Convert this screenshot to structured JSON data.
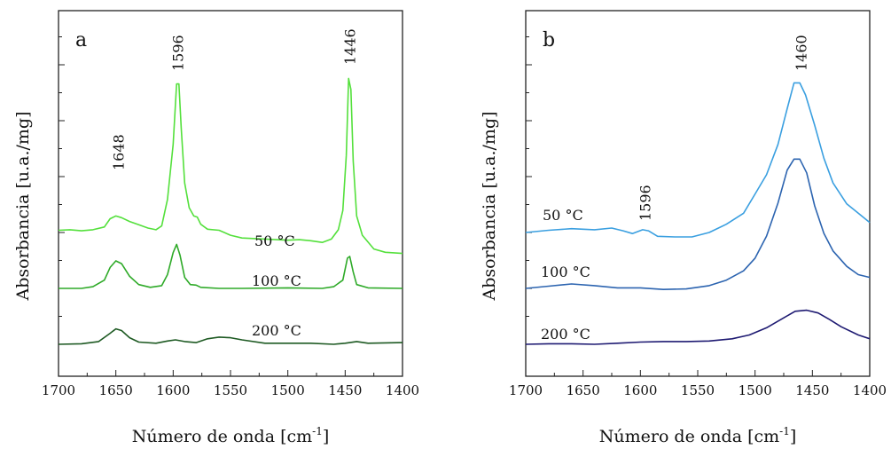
{
  "chart_data": [
    {
      "type": "line",
      "panel": "a",
      "xlabel": "Número de onda [cm",
      "xlabel_sup": "-1",
      "xlabel_end": "]",
      "ylabel": "Absorbancia [u.a./mg]",
      "xlim": [
        1700,
        1400
      ],
      "x_reversed": true,
      "xticks": [
        1700,
        1650,
        1600,
        1550,
        1500,
        1450,
        1400
      ],
      "peak_labels": [
        {
          "x": 1648,
          "text": "1648"
        },
        {
          "x": 1596,
          "text": "1596"
        },
        {
          "x": 1446,
          "text": "1446"
        }
      ],
      "series": [
        {
          "name": "50 °C",
          "color": "#54e03c",
          "points": [
            [
              1700,
              0.04
            ],
            [
              1690,
              0.05
            ],
            [
              1680,
              0.03
            ],
            [
              1670,
              0.05
            ],
            [
              1660,
              0.1
            ],
            [
              1655,
              0.25
            ],
            [
              1650,
              0.3
            ],
            [
              1645,
              0.27
            ],
            [
              1638,
              0.2
            ],
            [
              1630,
              0.14
            ],
            [
              1622,
              0.08
            ],
            [
              1615,
              0.05
            ],
            [
              1610,
              0.12
            ],
            [
              1605,
              0.6
            ],
            [
              1600,
              1.6
            ],
            [
              1597,
              2.7
            ],
            [
              1595,
              2.7
            ],
            [
              1593,
              1.9
            ],
            [
              1590,
              0.9
            ],
            [
              1586,
              0.45
            ],
            [
              1582,
              0.3
            ],
            [
              1579,
              0.28
            ],
            [
              1576,
              0.15
            ],
            [
              1570,
              0.06
            ],
            [
              1560,
              0.04
            ],
            [
              1550,
              -0.05
            ],
            [
              1540,
              -0.1
            ],
            [
              1520,
              -0.12
            ],
            [
              1500,
              -0.14
            ],
            [
              1490,
              -0.13
            ],
            [
              1480,
              -0.15
            ],
            [
              1470,
              -0.18
            ],
            [
              1462,
              -0.12
            ],
            [
              1456,
              0.05
            ],
            [
              1452,
              0.4
            ],
            [
              1449,
              1.4
            ],
            [
              1447,
              2.8
            ],
            [
              1445,
              2.6
            ],
            [
              1443,
              1.3
            ],
            [
              1440,
              0.3
            ],
            [
              1435,
              -0.05
            ],
            [
              1425,
              -0.3
            ],
            [
              1415,
              -0.36
            ],
            [
              1400,
              -0.38
            ]
          ]
        },
        {
          "name": "100 °C",
          "color": "#2eaa28",
          "points": [
            [
              1700,
              0.0
            ],
            [
              1680,
              0.0
            ],
            [
              1670,
              0.03
            ],
            [
              1660,
              0.15
            ],
            [
              1655,
              0.38
            ],
            [
              1650,
              0.5
            ],
            [
              1645,
              0.45
            ],
            [
              1638,
              0.22
            ],
            [
              1630,
              0.07
            ],
            [
              1620,
              0.02
            ],
            [
              1610,
              0.05
            ],
            [
              1605,
              0.25
            ],
            [
              1600,
              0.65
            ],
            [
              1597,
              0.8
            ],
            [
              1594,
              0.6
            ],
            [
              1590,
              0.2
            ],
            [
              1585,
              0.07
            ],
            [
              1580,
              0.06
            ],
            [
              1576,
              0.02
            ],
            [
              1560,
              0.0
            ],
            [
              1540,
              0.0
            ],
            [
              1500,
              0.01
            ],
            [
              1470,
              0.0
            ],
            [
              1460,
              0.03
            ],
            [
              1452,
              0.15
            ],
            [
              1448,
              0.55
            ],
            [
              1446,
              0.58
            ],
            [
              1443,
              0.3
            ],
            [
              1440,
              0.07
            ],
            [
              1430,
              0.01
            ],
            [
              1400,
              0.0
            ]
          ]
        },
        {
          "name": "200 °C",
          "color": "#1e5a23",
          "points": [
            [
              1700,
              0.0
            ],
            [
              1680,
              0.01
            ],
            [
              1665,
              0.05
            ],
            [
              1655,
              0.2
            ],
            [
              1650,
              0.28
            ],
            [
              1645,
              0.25
            ],
            [
              1638,
              0.12
            ],
            [
              1630,
              0.04
            ],
            [
              1615,
              0.02
            ],
            [
              1605,
              0.06
            ],
            [
              1598,
              0.08
            ],
            [
              1590,
              0.05
            ],
            [
              1580,
              0.03
            ],
            [
              1570,
              0.1
            ],
            [
              1560,
              0.13
            ],
            [
              1550,
              0.12
            ],
            [
              1540,
              0.08
            ],
            [
              1520,
              0.02
            ],
            [
              1500,
              0.02
            ],
            [
              1480,
              0.02
            ],
            [
              1460,
              0.0
            ],
            [
              1450,
              0.02
            ],
            [
              1440,
              0.05
            ],
            [
              1430,
              0.02
            ],
            [
              1400,
              0.03
            ]
          ]
        }
      ]
    },
    {
      "type": "line",
      "panel": "b",
      "xlabel": "Número de onda [cm",
      "xlabel_sup": "-1",
      "xlabel_end": "]",
      "ylabel": "Absorbancia [u.a./mg]",
      "xlim": [
        1700,
        1400
      ],
      "x_reversed": true,
      "xticks": [
        1700,
        1650,
        1600,
        1550,
        1500,
        1450,
        1400
      ],
      "peak_labels": [
        {
          "x": 1596,
          "text": "1596"
        },
        {
          "x": 1460,
          "text": "1460"
        }
      ],
      "series": [
        {
          "name": "50 °C",
          "color": "#3a9fe0",
          "points": [
            [
              1700,
              0.0
            ],
            [
              1680,
              0.04
            ],
            [
              1660,
              0.07
            ],
            [
              1640,
              0.05
            ],
            [
              1625,
              0.08
            ],
            [
              1615,
              0.03
            ],
            [
              1607,
              -0.02
            ],
            [
              1598,
              0.05
            ],
            [
              1593,
              0.03
            ],
            [
              1585,
              -0.07
            ],
            [
              1570,
              -0.08
            ],
            [
              1555,
              -0.08
            ],
            [
              1540,
              0.0
            ],
            [
              1525,
              0.15
            ],
            [
              1510,
              0.35
            ],
            [
              1500,
              0.7
            ],
            [
              1490,
              1.05
            ],
            [
              1480,
              1.6
            ],
            [
              1472,
              2.25
            ],
            [
              1466,
              2.72
            ],
            [
              1461,
              2.72
            ],
            [
              1456,
              2.5
            ],
            [
              1448,
              1.95
            ],
            [
              1440,
              1.35
            ],
            [
              1432,
              0.9
            ],
            [
              1420,
              0.52
            ],
            [
              1410,
              0.35
            ],
            [
              1400,
              0.18
            ]
          ]
        },
        {
          "name": "100 °C",
          "color": "#2c64b0",
          "points": [
            [
              1700,
              0.0
            ],
            [
              1680,
              0.04
            ],
            [
              1660,
              0.08
            ],
            [
              1640,
              0.05
            ],
            [
              1620,
              0.01
            ],
            [
              1600,
              0.01
            ],
            [
              1580,
              -0.02
            ],
            [
              1560,
              -0.01
            ],
            [
              1540,
              0.05
            ],
            [
              1525,
              0.15
            ],
            [
              1510,
              0.32
            ],
            [
              1500,
              0.55
            ],
            [
              1490,
              0.95
            ],
            [
              1480,
              1.55
            ],
            [
              1472,
              2.15
            ],
            [
              1466,
              2.35
            ],
            [
              1461,
              2.35
            ],
            [
              1455,
              2.1
            ],
            [
              1448,
              1.5
            ],
            [
              1440,
              1.0
            ],
            [
              1432,
              0.68
            ],
            [
              1420,
              0.4
            ],
            [
              1410,
              0.25
            ],
            [
              1400,
              0.2
            ]
          ]
        },
        {
          "name": "200 °C",
          "color": "#1e1a72",
          "points": [
            [
              1700,
              0.0
            ],
            [
              1680,
              0.01
            ],
            [
              1660,
              0.01
            ],
            [
              1640,
              0.0
            ],
            [
              1620,
              0.02
            ],
            [
              1600,
              0.04
            ],
            [
              1580,
              0.05
            ],
            [
              1560,
              0.05
            ],
            [
              1540,
              0.06
            ],
            [
              1520,
              0.1
            ],
            [
              1505,
              0.17
            ],
            [
              1490,
              0.3
            ],
            [
              1475,
              0.48
            ],
            [
              1465,
              0.6
            ],
            [
              1455,
              0.62
            ],
            [
              1445,
              0.57
            ],
            [
              1435,
              0.45
            ],
            [
              1425,
              0.32
            ],
            [
              1410,
              0.17
            ],
            [
              1400,
              0.1
            ]
          ]
        }
      ]
    }
  ]
}
